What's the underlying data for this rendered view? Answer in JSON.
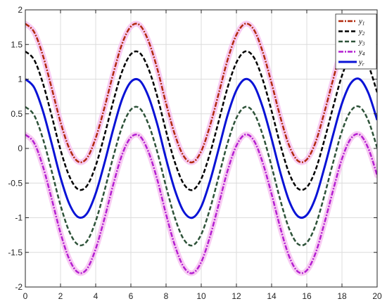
{
  "chart_data": {
    "type": "line",
    "title": "",
    "xlabel": "",
    "ylabel": "",
    "xlim": [
      0,
      20
    ],
    "ylim": [
      -2,
      2
    ],
    "grid": true,
    "legend_position": "top-right",
    "x_ticks": [
      0,
      2,
      4,
      6,
      8,
      10,
      12,
      14,
      16,
      18,
      20
    ],
    "x_tick_labels": [
      "0",
      "2",
      "4",
      "6",
      "8",
      "10",
      "12",
      "14",
      "16",
      "18",
      "20"
    ],
    "y_ticks": [
      -2,
      -1.5,
      -1,
      -0.5,
      0,
      0.5,
      1,
      1.5,
      2
    ],
    "y_tick_labels": [
      "-2",
      "-1.5",
      "-1",
      "-0.5",
      "0",
      "0.5",
      "1",
      "1.5",
      "2"
    ],
    "x_samples": [
      0,
      0.5,
      1,
      1.5,
      2,
      2.5,
      3,
      3.5,
      4,
      4.5,
      5,
      5.5,
      6,
      6.5,
      7,
      7.5,
      8,
      8.5,
      9,
      9.5,
      10,
      10.5,
      11,
      11.5,
      12,
      12.5,
      13,
      13.5,
      14,
      14.5,
      15,
      15.5,
      16,
      16.5,
      17,
      17.5,
      18,
      18.5,
      19,
      19.5,
      20
    ],
    "series": [
      {
        "name": "y1",
        "legend_main": "y",
        "legend_sub": "1",
        "color": "#b22a0e",
        "dash": "7,2,2,2",
        "width": 2.5,
        "halo": true,
        "values": [
          1.8,
          1.68,
          1.34,
          0.87,
          0.38,
          -0.0,
          -0.19,
          -0.14,
          0.15,
          0.59,
          1.08,
          1.51,
          1.76,
          1.78,
          1.55,
          1.15,
          0.65,
          0.2,
          -0.11,
          -0.2,
          -0.04,
          0.33,
          0.8,
          1.28,
          1.64,
          1.8,
          1.71,
          1.39,
          0.94,
          0.45,
          0.04,
          -0.18,
          -0.16,
          0.09,
          0.52,
          1.0,
          1.45,
          1.74,
          1.8,
          1.6,
          1.21
        ]
      },
      {
        "name": "y2",
        "legend_main": "y",
        "legend_sub": "2",
        "color": "#000000",
        "dash": "6,3",
        "width": 2.5,
        "halo": false,
        "values": [
          1.4,
          1.28,
          0.94,
          0.47,
          -0.02,
          -0.4,
          -0.59,
          -0.54,
          -0.25,
          0.19,
          0.68,
          1.11,
          1.36,
          1.38,
          1.15,
          0.75,
          0.25,
          -0.2,
          -0.51,
          -0.6,
          -0.44,
          -0.07,
          0.4,
          0.88,
          1.24,
          1.4,
          1.31,
          0.99,
          0.54,
          0.05,
          -0.36,
          -0.58,
          -0.56,
          -0.31,
          0.12,
          0.6,
          1.05,
          1.34,
          1.4,
          1.2,
          0.81
        ]
      },
      {
        "name": "y3",
        "legend_main": "y",
        "legend_sub": "3",
        "color": "#2e5339",
        "dash": "6,3",
        "width": 2.5,
        "halo": false,
        "values": [
          0.6,
          0.48,
          0.14,
          -0.33,
          -0.82,
          -1.2,
          -1.39,
          -1.34,
          -1.05,
          -0.61,
          -0.12,
          0.31,
          0.56,
          0.58,
          0.35,
          -0.05,
          -0.55,
          -1.0,
          -1.31,
          -1.4,
          -1.24,
          -0.87,
          -0.4,
          0.08,
          0.44,
          0.6,
          0.51,
          0.19,
          -0.26,
          -0.75,
          -1.16,
          -1.38,
          -1.36,
          -1.11,
          -0.68,
          -0.2,
          0.25,
          0.54,
          0.6,
          0.4,
          0.01
        ]
      },
      {
        "name": "y4",
        "legend_main": "y",
        "legend_sub": "4",
        "color": "#b41fd1",
        "dash": "7,2,2,2",
        "width": 2.5,
        "halo": true,
        "values": [
          0.2,
          0.08,
          -0.26,
          -0.73,
          -1.22,
          -1.6,
          -1.79,
          -1.74,
          -1.45,
          -1.01,
          -0.52,
          -0.09,
          0.16,
          0.18,
          -0.05,
          -0.45,
          -0.95,
          -1.4,
          -1.71,
          -1.8,
          -1.64,
          -1.27,
          -0.8,
          -0.32,
          0.04,
          0.2,
          0.11,
          -0.21,
          -0.66,
          -1.15,
          -1.56,
          -1.78,
          -1.76,
          -1.51,
          -1.08,
          -0.6,
          -0.15,
          0.14,
          0.2,
          0.0,
          -0.39
        ]
      },
      {
        "name": "yr",
        "legend_main": "y",
        "legend_sub": "r",
        "color": "#0a13d6",
        "dash": "",
        "width": 3,
        "halo": false,
        "values": [
          1.0,
          0.88,
          0.54,
          0.07,
          -0.42,
          -0.8,
          -0.99,
          -0.94,
          -0.65,
          -0.21,
          0.28,
          0.71,
          0.96,
          0.98,
          0.75,
          0.35,
          -0.15,
          -0.6,
          -0.91,
          -1.0,
          -0.84,
          -0.47,
          0.0,
          0.48,
          0.84,
          1.0,
          0.91,
          0.59,
          0.14,
          -0.35,
          -0.76,
          -0.98,
          -0.96,
          -0.71,
          -0.28,
          0.2,
          0.65,
          0.94,
          1.0,
          0.8,
          0.41
        ]
      }
    ]
  }
}
